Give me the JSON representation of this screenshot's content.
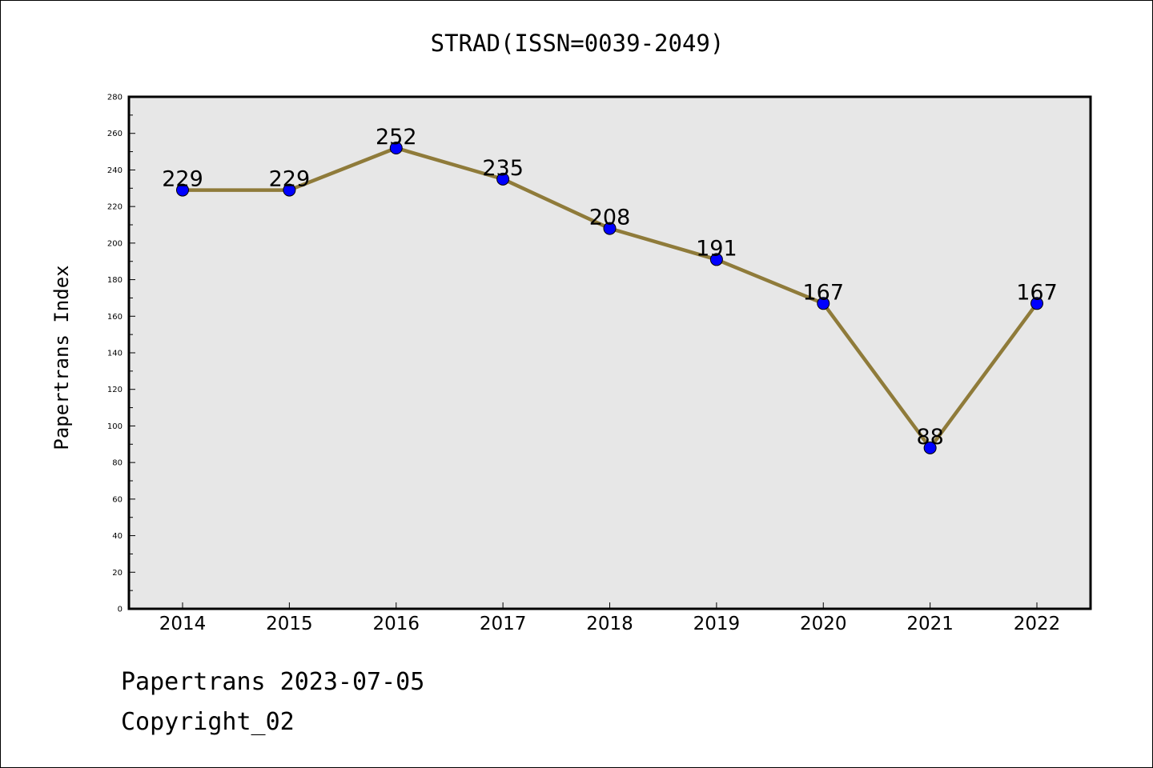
{
  "chart_data": {
    "type": "line",
    "title": "STRAD(ISSN=0039-2049)",
    "xlabel": "",
    "ylabel": "Papertrans Index",
    "categories": [
      "2014",
      "2015",
      "2016",
      "2017",
      "2018",
      "2019",
      "2020",
      "2021",
      "2022"
    ],
    "series": [
      {
        "values": [
          229,
          229,
          252,
          235,
          208,
          191,
          167,
          88,
          167
        ]
      }
    ],
    "ylim": [
      0,
      280
    ],
    "yticks": [
      0,
      20,
      40,
      60,
      80,
      100,
      120,
      140,
      160,
      180,
      200,
      220,
      240,
      260,
      280
    ],
    "grid": false,
    "data_labels": true,
    "line_color": "#8f7b3a",
    "marker_color": "#0000ff",
    "plot_background": "#e7e7e7"
  },
  "footer": {
    "line1": "Papertrans 2023-07-05",
    "line2": "Copyright_02"
  }
}
